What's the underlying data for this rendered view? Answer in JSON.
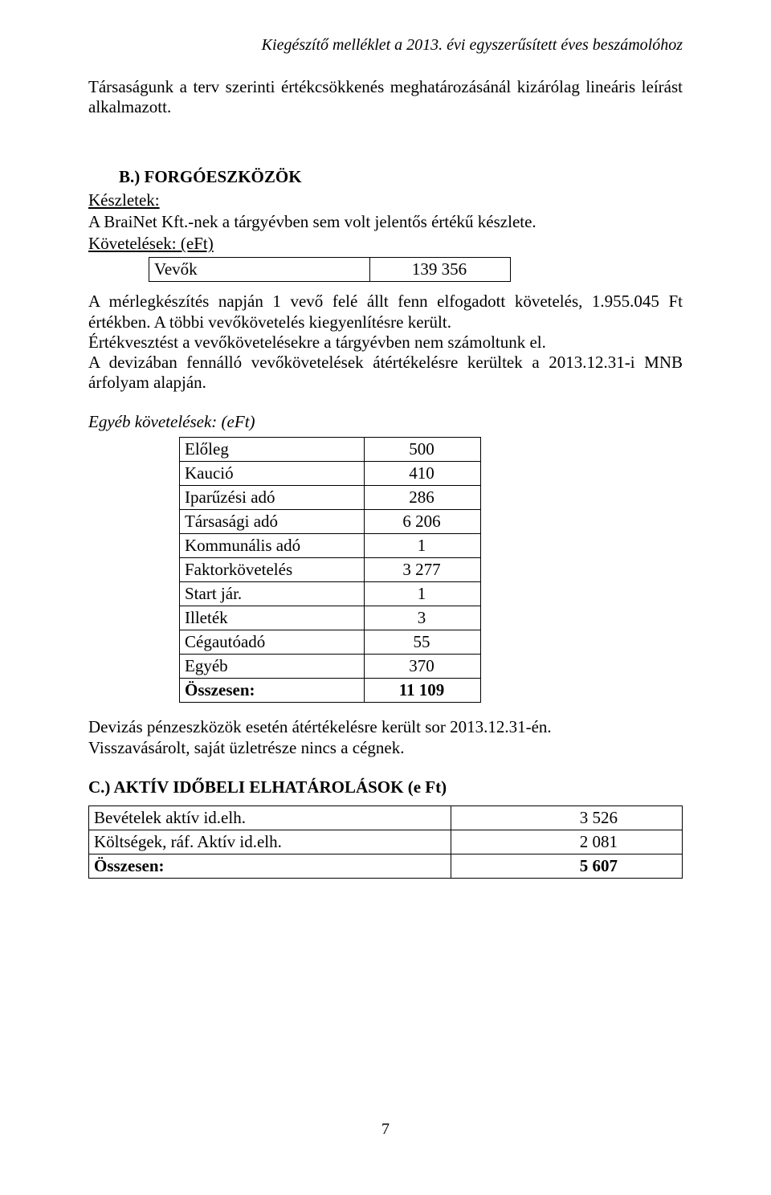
{
  "header_right": "Kiegészítő melléklet a 2013. évi egyszerűsített éves beszámolóhoz",
  "para_intro": "Társaságunk a terv szerinti értékcsökkenés meghatározásánál kizárólag lineáris leírást alkalmazott.",
  "section_b_title": "B.) FORGÓESZKÖZÖK",
  "kesz_label": "Készletek:",
  "kesz_text": "A BraiNet Kft.-nek a tárgyévben sem volt jelentős értékű készlete.",
  "kov_label": "Követelések: (eFt)",
  "vevok_row": {
    "label": "Vevők",
    "value": "139 356"
  },
  "para_merleg": "A mérlegkészítés napján 1 vevő felé állt fenn elfogadott követelés, 1.955.045 Ft értékben. A többi vevőkövetelés kiegyenlítésre került.",
  "para_ertekv": "Értékvesztést a vevőkövetelésekre a tárgyévben nem számoltunk el.",
  "para_deviza": "A devizában fennálló vevőkövetelések átértékelésre kerültek a 2013.12.31-i MNB árfolyam alapján.",
  "egyeb_kov_title": "Egyéb követelések: (eFt)",
  "egyeb_table": [
    {
      "label": "Előleg",
      "value": "500",
      "bold": false
    },
    {
      "label": "Kaució",
      "value": "410",
      "bold": false
    },
    {
      "label": "Iparűzési adó",
      "value": "286",
      "bold": false
    },
    {
      "label": "Társasági adó",
      "value": "6 206",
      "bold": false
    },
    {
      "label": "Kommunális adó",
      "value": "1",
      "bold": false
    },
    {
      "label": "Faktorkövetelés",
      "value": "3 277",
      "bold": false
    },
    {
      "label": "Start jár.",
      "value": "1",
      "bold": false
    },
    {
      "label": "Illeték",
      "value": "3",
      "bold": false
    },
    {
      "label": "Cégautóadó",
      "value": "55",
      "bold": false
    },
    {
      "label": "Egyéb",
      "value": "370",
      "bold": false
    },
    {
      "label": "Összesen:",
      "value": "11 109",
      "bold": true
    }
  ],
  "para_devizas": "Devizás pénzeszközök esetén átértékelésre került sor 2013.12.31-én.",
  "para_vissza": "Visszavásárolt, saját üzletrésze nincs a cégnek.",
  "section_c_title": "C.) AKTÍV IDŐBELI ELHATÁROLÁSOK (e Ft)",
  "aktiv_table": [
    {
      "label": "Bevételek aktív id.elh.",
      "value": "3 526",
      "bold": false
    },
    {
      "label": "Költségek, ráf. Aktív id.elh.",
      "value": "2 081",
      "bold": false
    },
    {
      "label": "Összesen:",
      "value": "5 607",
      "bold": true
    }
  ],
  "page_number": "7"
}
